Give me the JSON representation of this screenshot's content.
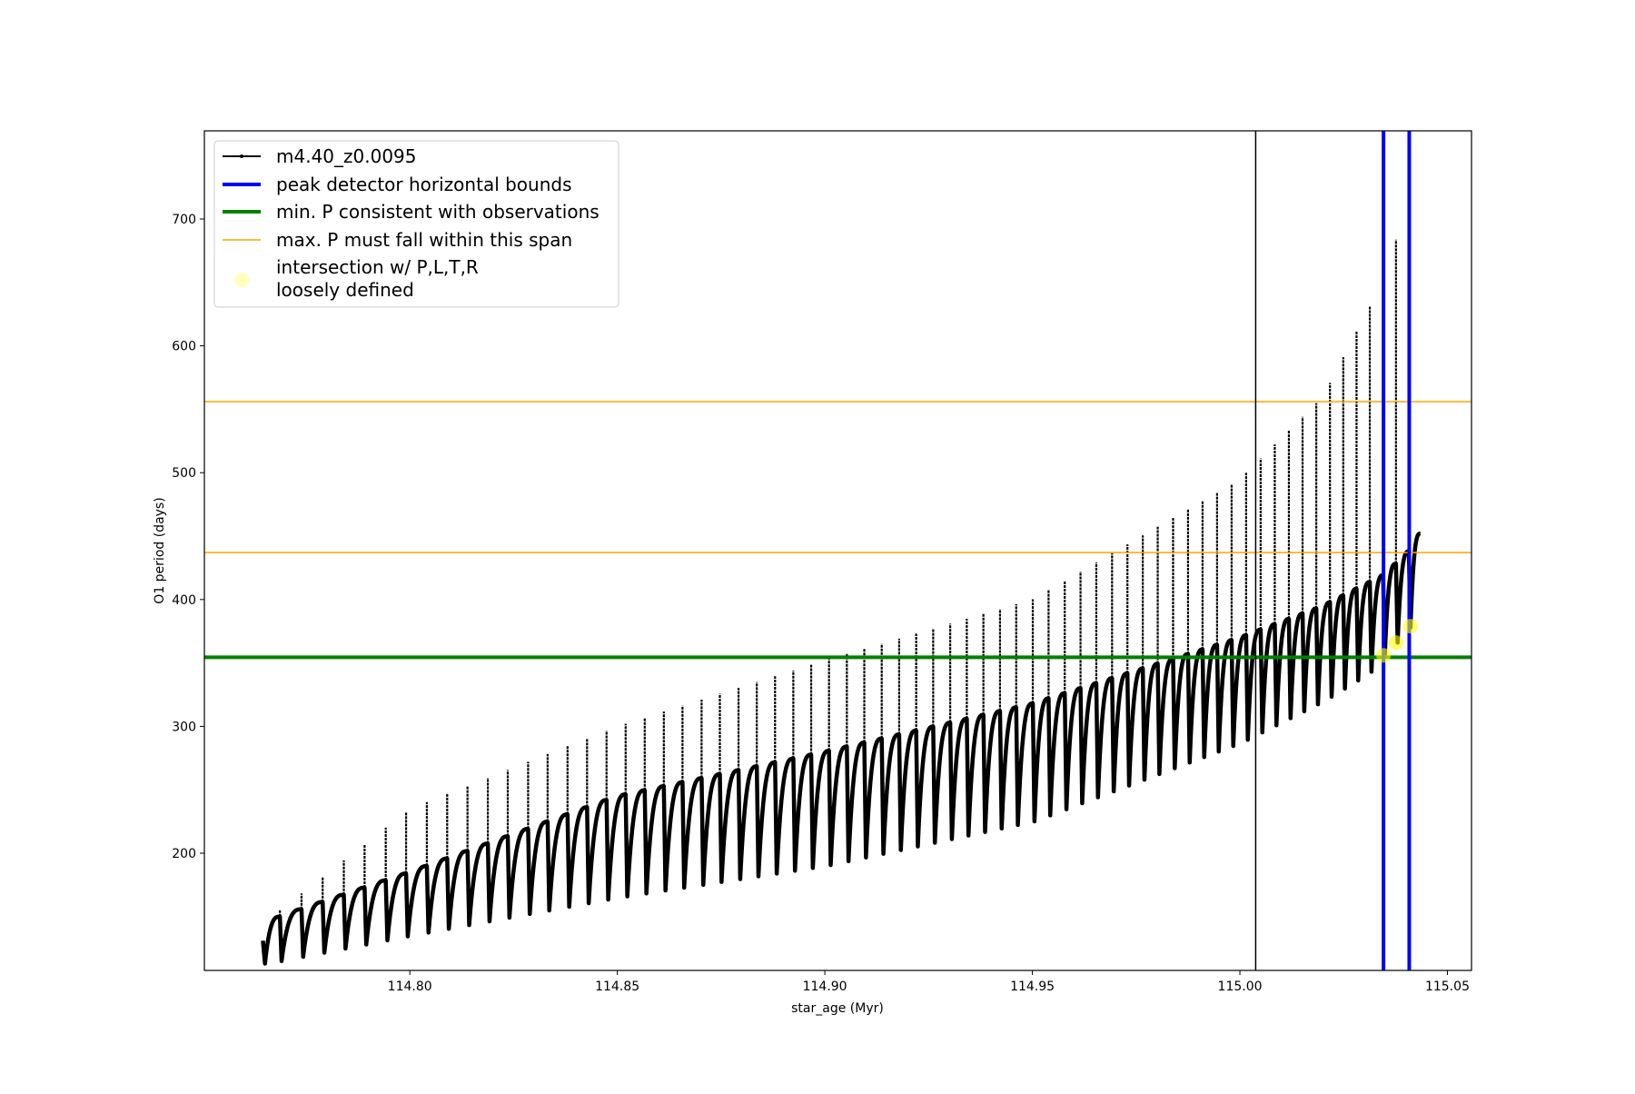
{
  "chart_data": {
    "type": "line",
    "xlabel": "star_age (Myr)",
    "ylabel": "O1 period (days)",
    "xlim": [
      114.7505,
      115.0558
    ],
    "ylim": [
      107.6,
      769.5
    ],
    "xticks": [
      114.8,
      114.85,
      114.9,
      114.95,
      115.0,
      115.05
    ],
    "xtick_labels": [
      "114.80",
      "114.85",
      "114.90",
      "114.95",
      "115.00",
      "115.05"
    ],
    "yticks": [
      200,
      300,
      400,
      500,
      600,
      700
    ],
    "ytick_labels": [
      "200",
      "300",
      "400",
      "500",
      "600",
      "700"
    ],
    "grid": false,
    "legend_placement": "upper-left",
    "series": [
      {
        "name": "m4.40_z0.0095",
        "color": "#000000",
        "start": {
          "age": 114.7646,
          "period": 131
        },
        "end": {
          "age": 115.0435,
          "period": 452
        },
        "pulse_ages": [
          114.7687,
          114.7739,
          114.779,
          114.7841,
          114.7891,
          114.7942,
          114.7991,
          114.8041,
          114.809,
          114.8139,
          114.8188,
          114.8236,
          114.8285,
          114.8332,
          114.838,
          114.8427,
          114.8474,
          114.852,
          114.8566,
          114.8612,
          114.8657,
          114.8703,
          114.8747,
          114.8792,
          114.8836,
          114.888,
          114.8924,
          114.8967,
          114.901,
          114.9053,
          114.9095,
          114.9137,
          114.9179,
          114.922,
          114.9261,
          114.9302,
          114.9342,
          114.9382,
          114.9422,
          114.9461,
          114.9501,
          114.9539,
          114.9578,
          114.9616,
          114.9654,
          114.9692,
          114.9729,
          114.9766,
          114.9802,
          114.9839,
          114.9875,
          114.991,
          114.9945,
          114.998,
          115.0015,
          115.005,
          115.0084,
          115.0118,
          115.0151,
          115.0184,
          115.0217,
          115.0249,
          115.0281,
          115.0313,
          115.0345,
          115.0376,
          115.0407
        ],
        "envelope_top": [
          [
            114.7687,
            150
          ],
          [
            114.8,
            185
          ],
          [
            114.85,
            245
          ],
          [
            114.9,
            280
          ],
          [
            114.95,
            318
          ],
          [
            115.0,
            370
          ],
          [
            115.02,
            395
          ],
          [
            115.035,
            420
          ],
          [
            115.0407,
            438
          ]
        ],
        "envelope_max": [
          [
            114.7687,
            155
          ],
          [
            114.8,
            235
          ],
          [
            114.85,
            300
          ],
          [
            114.9,
            352
          ],
          [
            114.95,
            400
          ],
          [
            115.0,
            495
          ],
          [
            115.02,
            560
          ],
          [
            115.035,
            655
          ],
          [
            115.0407,
            718
          ]
        ],
        "envelope_min": [
          [
            114.7687,
            115
          ],
          [
            114.8,
            135
          ],
          [
            114.85,
            165
          ],
          [
            114.9,
            190
          ],
          [
            114.95,
            225
          ],
          [
            115.0,
            287
          ],
          [
            115.02,
            320
          ],
          [
            115.031,
            342
          ],
          [
            115.0345,
            355
          ],
          [
            115.0376,
            366
          ],
          [
            115.0407,
            378
          ]
        ]
      }
    ],
    "vlines": [
      {
        "x": 115.0038,
        "color": "#000000",
        "label": ""
      },
      {
        "x": 115.0346,
        "color": "#0000ff",
        "label": "peak detector horizontal bounds"
      },
      {
        "x": 115.0408,
        "color": "#0000ff",
        "label": "peak detector horizontal bounds"
      }
    ],
    "hlines": [
      {
        "y": 354.5,
        "color": "#008000",
        "label": "min. P consistent with observations"
      },
      {
        "y": 556,
        "color": "#ffa500",
        "label": "max. P must fall within this span"
      },
      {
        "y": 437,
        "color": "#ffa500",
        "label": "max. P must fall within this span"
      }
    ],
    "points": {
      "label": "intersection w/ P,L,T,R\nloosely defined",
      "color": "#ffff00",
      "data": [
        [
          115.0346,
          356
        ],
        [
          115.0376,
          366
        ],
        [
          115.0411,
          379
        ]
      ]
    },
    "legend": [
      {
        "label": "m4.40_z0.0095",
        "color": "#000000",
        "kind": "line-marker"
      },
      {
        "label": "peak detector horizontal bounds",
        "color": "#0000ff",
        "kind": "thick-line"
      },
      {
        "label": "min. P consistent with observations",
        "color": "#008000",
        "kind": "thick-line"
      },
      {
        "label": "max. P must fall within this span",
        "color": "#ffa500",
        "kind": "thin-line"
      },
      {
        "label_line1": "intersection w/ P,L,T,R",
        "label_line2": "loosely defined",
        "color": "#ffffc0",
        "kind": "dot"
      }
    ]
  }
}
